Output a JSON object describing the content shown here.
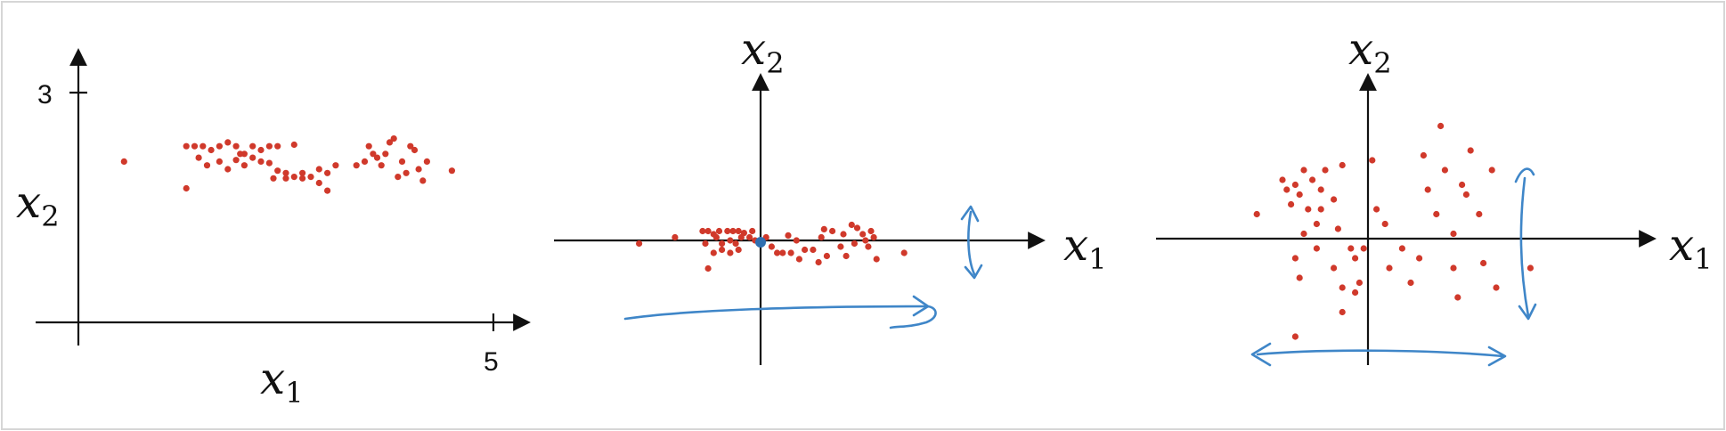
{
  "panels": [
    {
      "id": "original",
      "x_label": "x",
      "x_sub": "1",
      "y_label": "x",
      "y_sub": "2",
      "x_tick": "5",
      "y_tick": "3",
      "points": [
        [
          0.55,
          2.1
        ],
        [
          1.3,
          2.3
        ],
        [
          1.4,
          2.3
        ],
        [
          1.5,
          2.3
        ],
        [
          1.6,
          2.25
        ],
        [
          1.7,
          2.3
        ],
        [
          1.8,
          2.35
        ],
        [
          1.9,
          2.3
        ],
        [
          2.0,
          2.2
        ],
        [
          2.1,
          2.3
        ],
        [
          2.2,
          2.25
        ],
        [
          2.3,
          2.3
        ],
        [
          2.4,
          2.3
        ],
        [
          2.6,
          2.32
        ],
        [
          1.45,
          2.15
        ],
        [
          1.55,
          2.05
        ],
        [
          1.7,
          2.1
        ],
        [
          1.8,
          2.0
        ],
        [
          1.9,
          2.12
        ],
        [
          2.0,
          2.05
        ],
        [
          2.1,
          2.15
        ],
        [
          2.3,
          2.08
        ],
        [
          2.4,
          1.98
        ],
        [
          2.5,
          1.95
        ],
        [
          2.6,
          1.9
        ],
        [
          2.7,
          1.95
        ],
        [
          2.8,
          1.9
        ],
        [
          2.9,
          2.0
        ],
        [
          3.0,
          1.95
        ],
        [
          3.1,
          2.05
        ],
        [
          1.3,
          1.75
        ],
        [
          2.35,
          1.88
        ],
        [
          2.5,
          1.88
        ],
        [
          2.7,
          1.88
        ],
        [
          2.9,
          1.82
        ],
        [
          3.0,
          1.72
        ],
        [
          3.5,
          2.3
        ],
        [
          3.55,
          2.2
        ],
        [
          3.6,
          2.15
        ],
        [
          3.65,
          2.05
        ],
        [
          3.7,
          2.2
        ],
        [
          3.75,
          2.35
        ],
        [
          3.8,
          2.4
        ],
        [
          3.9,
          2.1
        ],
        [
          3.95,
          1.95
        ],
        [
          4.0,
          2.3
        ],
        [
          4.05,
          2.25
        ],
        [
          4.1,
          2.0
        ],
        [
          4.2,
          2.1
        ],
        [
          4.15,
          1.85
        ],
        [
          4.5,
          1.98
        ],
        [
          3.45,
          2.1
        ],
        [
          3.85,
          1.9
        ],
        [
          3.35,
          2.05
        ],
        [
          2.2,
          2.1
        ],
        [
          1.95,
          2.2
        ]
      ]
    },
    {
      "id": "mean_subtracted",
      "x_label": "x",
      "x_sub": "1",
      "y_label": "x",
      "y_sub": "2",
      "origin_point": [
        0,
        0
      ],
      "points": [
        [
          -2.2,
          -0.05
        ],
        [
          -1.55,
          0.05
        ],
        [
          -1.05,
          0.15
        ],
        [
          -0.95,
          0.15
        ],
        [
          -0.85,
          0.1
        ],
        [
          -0.75,
          0.15
        ],
        [
          -0.6,
          0.15
        ],
        [
          -0.5,
          0.15
        ],
        [
          -0.4,
          0.15
        ],
        [
          -0.3,
          0.12
        ],
        [
          -0.15,
          0.15
        ],
        [
          -1.0,
          -0.05
        ],
        [
          -0.8,
          0.05
        ],
        [
          -0.7,
          -0.05
        ],
        [
          -0.55,
          0.0
        ],
        [
          -0.45,
          -0.05
        ],
        [
          -0.35,
          0.05
        ],
        [
          -0.2,
          0.05
        ],
        [
          -0.1,
          0.0
        ],
        [
          -0.85,
          -0.2
        ],
        [
          -0.7,
          -0.15
        ],
        [
          -0.55,
          -0.2
        ],
        [
          -0.4,
          -0.15
        ],
        [
          -0.95,
          -0.45
        ],
        [
          0.1,
          0.05
        ],
        [
          0.2,
          -0.1
        ],
        [
          0.3,
          -0.2
        ],
        [
          0.4,
          -0.2
        ],
        [
          0.5,
          0.08
        ],
        [
          0.55,
          -0.2
        ],
        [
          0.65,
          0.0
        ],
        [
          0.7,
          -0.3
        ],
        [
          0.8,
          -0.15
        ],
        [
          0.95,
          -0.15
        ],
        [
          1.1,
          0.05
        ],
        [
          1.2,
          -0.25
        ],
        [
          1.05,
          -0.35
        ],
        [
          1.15,
          0.18
        ],
        [
          1.3,
          0.15
        ],
        [
          1.45,
          -0.1
        ],
        [
          1.5,
          0.1
        ],
        [
          1.55,
          -0.25
        ],
        [
          1.65,
          0.25
        ],
        [
          1.75,
          0.2
        ],
        [
          1.85,
          0.1
        ],
        [
          1.9,
          0.0
        ],
        [
          1.95,
          -0.1
        ],
        [
          2.05,
          0.05
        ],
        [
          2.1,
          -0.3
        ],
        [
          2.0,
          0.15
        ],
        [
          1.7,
          -0.05
        ],
        [
          2.6,
          -0.2
        ]
      ]
    },
    {
      "id": "normalized",
      "x_label": "x",
      "x_sub": "1",
      "y_label": "x",
      "y_sub": "2",
      "points": [
        [
          -1.3,
          0.25
        ],
        [
          -1.0,
          0.6
        ],
        [
          -0.95,
          0.5
        ],
        [
          -0.9,
          0.35
        ],
        [
          -0.85,
          0.55
        ],
        [
          -0.8,
          0.45
        ],
        [
          -0.75,
          0.7
        ],
        [
          -0.7,
          0.3
        ],
        [
          -0.65,
          0.6
        ],
        [
          -0.6,
          0.15
        ],
        [
          -0.55,
          0.5
        ],
        [
          -0.5,
          0.7
        ],
        [
          -0.4,
          0.4
        ],
        [
          -0.3,
          0.75
        ],
        [
          -0.75,
          0.05
        ],
        [
          -0.55,
          0.3
        ],
        [
          -0.35,
          0.1
        ],
        [
          -0.2,
          -0.1
        ],
        [
          -0.85,
          -0.2
        ],
        [
          -0.8,
          -0.4
        ],
        [
          -0.6,
          -0.1
        ],
        [
          -0.4,
          -0.3
        ],
        [
          -0.3,
          -0.5
        ],
        [
          -0.15,
          -0.2
        ],
        [
          -0.1,
          -0.45
        ],
        [
          -0.05,
          -0.1
        ],
        [
          -0.15,
          -0.55
        ],
        [
          -0.3,
          -0.75
        ],
        [
          -0.85,
          -1.0
        ],
        [
          0.05,
          0.8
        ],
        [
          0.1,
          0.3
        ],
        [
          0.2,
          0.15
        ],
        [
          0.25,
          -0.3
        ],
        [
          0.4,
          -0.1
        ],
        [
          0.5,
          -0.45
        ],
        [
          0.6,
          -0.2
        ],
        [
          0.65,
          0.85
        ],
        [
          0.7,
          0.5
        ],
        [
          0.8,
          0.25
        ],
        [
          0.85,
          1.15
        ],
        [
          0.9,
          0.7
        ],
        [
          1.0,
          0.05
        ],
        [
          1.05,
          -0.6
        ],
        [
          1.1,
          0.55
        ],
        [
          1.15,
          0.45
        ],
        [
          1.2,
          0.9
        ],
        [
          1.3,
          0.25
        ],
        [
          1.35,
          -0.25
        ],
        [
          1.45,
          0.7
        ],
        [
          1.5,
          -0.5
        ],
        [
          1.9,
          -0.3
        ],
        [
          1.0,
          -0.3
        ]
      ]
    }
  ],
  "colors": {
    "points": "#d0392b",
    "ink": "#3f86c8",
    "axis": "#111111"
  }
}
